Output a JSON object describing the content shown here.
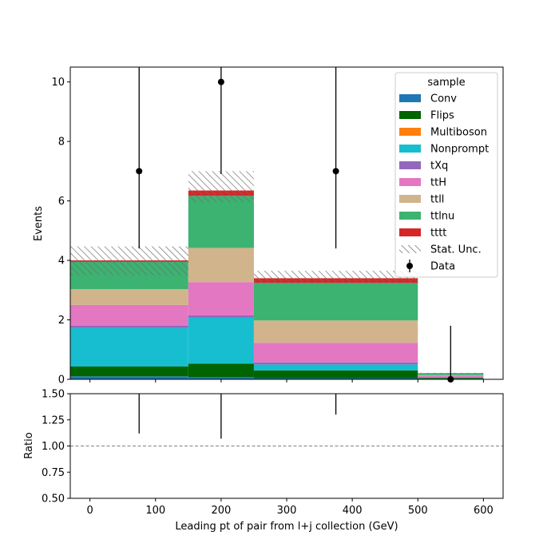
{
  "chart_data": [
    {
      "type": "bar",
      "stacked": true,
      "title": "",
      "xlabel": "",
      "ylabel": "Events",
      "xlim": [
        -30,
        630
      ],
      "ylim": [
        0,
        10.5
      ],
      "yticks": [
        0,
        2,
        4,
        6,
        8,
        10
      ],
      "bins": [
        [
          -30,
          150
        ],
        [
          150,
          250
        ],
        [
          250,
          500
        ],
        [
          500,
          600
        ]
      ],
      "series": [
        {
          "name": "Conv",
          "color": "#1f77b4",
          "values": [
            0.1,
            0.08,
            0.04,
            0.02
          ]
        },
        {
          "name": "Flips",
          "color": "#006400",
          "values": [
            0.33,
            0.45,
            0.26,
            0.03
          ]
        },
        {
          "name": "Multiboson",
          "color": "#ff7f0e",
          "values": [
            0.0,
            0.0,
            0.0,
            0.0
          ]
        },
        {
          "name": "Nonprompt",
          "color": "#17becf",
          "values": [
            1.3,
            1.55,
            0.2,
            0.02
          ]
        },
        {
          "name": "tXq",
          "color": "#9467bd",
          "values": [
            0.07,
            0.07,
            0.07,
            0.0
          ]
        },
        {
          "name": "ttH",
          "color": "#e377c2",
          "values": [
            0.7,
            1.12,
            0.66,
            0.05
          ]
        },
        {
          "name": "ttll",
          "color": "#d2b48c",
          "values": [
            0.53,
            1.15,
            0.75,
            0.02
          ]
        },
        {
          "name": "ttlnu",
          "color": "#3cb371",
          "values": [
            0.92,
            1.75,
            1.26,
            0.07
          ]
        },
        {
          "name": "tttt",
          "color": "#d62728",
          "values": [
            0.05,
            0.18,
            0.16,
            0.0
          ]
        }
      ],
      "stat_unc": [
        [
          3.5,
          4.47
        ],
        [
          5.95,
          7.0
        ],
        [
          3.22,
          3.65
        ],
        [
          0.18,
          0.22
        ]
      ],
      "data": {
        "x": [
          75,
          200,
          375,
          550
        ],
        "y": [
          7,
          10,
          7,
          0
        ],
        "yerr_low": [
          2.6,
          3.1,
          2.6,
          0
        ],
        "yerr_high": [
          3.9,
          4.3,
          3.9,
          1.8
        ]
      },
      "legend": {
        "title": "sample",
        "placement": "top-right",
        "entries": [
          "Conv",
          "Flips",
          "Multiboson",
          "Nonprompt",
          "tXq",
          "ttH",
          "ttll",
          "ttlnu",
          "tttt",
          "Stat. Unc.",
          "Data"
        ]
      }
    },
    {
      "type": "line",
      "title": "",
      "xlabel": "Leading pt of pair from l+j collection (GeV)",
      "ylabel": "Ratio",
      "xlim": [
        -30,
        630
      ],
      "ylim": [
        0.5,
        1.5
      ],
      "xticks": [
        0,
        100,
        200,
        300,
        400,
        500,
        600
      ],
      "yticks": [
        "0.50",
        "0.75",
        "1.00",
        "1.25",
        "1.50"
      ],
      "reference_line": 1.0,
      "ratio_errorbars": [
        {
          "x": 75,
          "low": 1.12,
          "high": 1.5
        },
        {
          "x": 200,
          "low": 1.07,
          "high": 1.5
        },
        {
          "x": 375,
          "low": 1.3,
          "high": 1.5
        }
      ]
    }
  ]
}
